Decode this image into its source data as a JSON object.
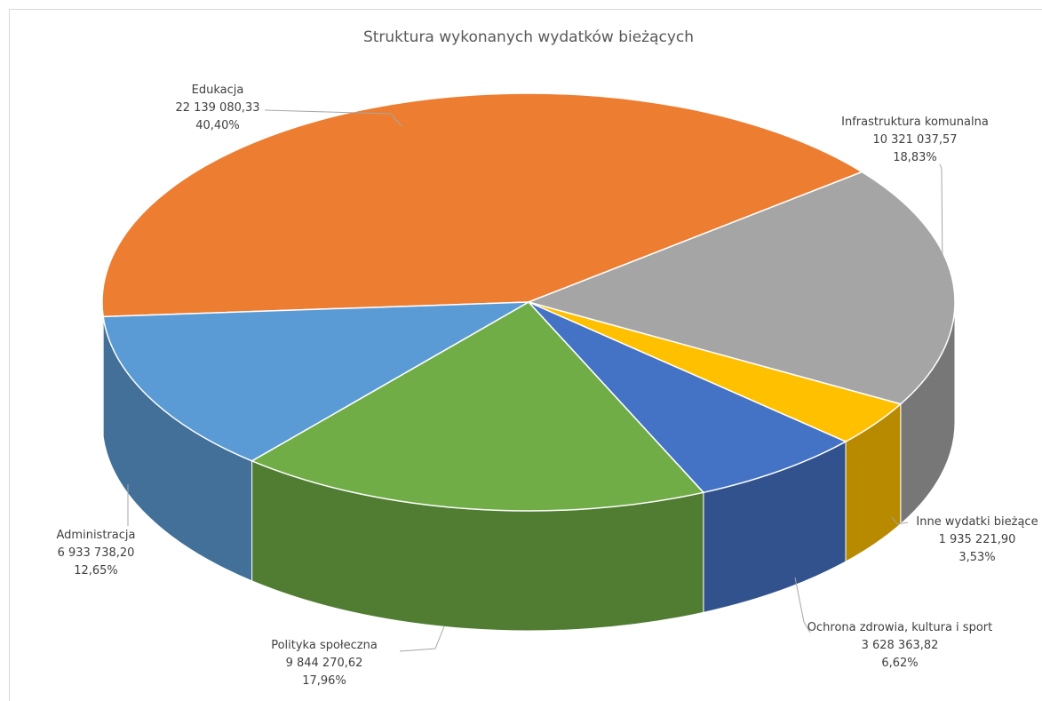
{
  "chart_data": {
    "type": "pie",
    "title": "Struktura wykonanych wydatków bieżących",
    "categories": [
      "Edukacja",
      "Infrastruktura komunalna",
      "Inne wydatki bieżące",
      "Ochrona zdrowia, kultura i sport",
      "Polityka społeczna",
      "Administracja"
    ],
    "values": [
      22139080.33,
      10321037.57,
      1935221.9,
      3628363.82,
      9844270.62,
      6933738.2
    ],
    "value_labels": [
      "22 139 080,33",
      "10 321 037,57",
      "1 935 221,90",
      "3 628 363,82",
      "9 844 270,62",
      "6 933 738,20"
    ],
    "percents": [
      40.4,
      18.83,
      3.53,
      6.62,
      17.96,
      12.65
    ],
    "percent_labels": [
      "40,40%",
      "18,83%",
      "3,53%",
      "6,62%",
      "17,96%",
      "12,65%"
    ],
    "colors": [
      "#ed7d31",
      "#a5a5a5",
      "#ffc000",
      "#4472c4",
      "#70ad47",
      "#5b9bd5"
    ]
  }
}
